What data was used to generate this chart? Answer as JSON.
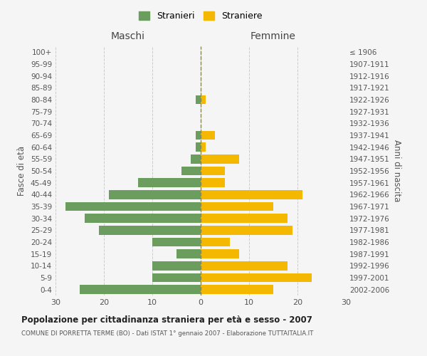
{
  "age_groups": [
    "0-4",
    "5-9",
    "10-14",
    "15-19",
    "20-24",
    "25-29",
    "30-34",
    "35-39",
    "40-44",
    "45-49",
    "50-54",
    "55-59",
    "60-64",
    "65-69",
    "70-74",
    "75-79",
    "80-84",
    "85-89",
    "90-94",
    "95-99",
    "100+"
  ],
  "birth_years": [
    "2002-2006",
    "1997-2001",
    "1992-1996",
    "1987-1991",
    "1982-1986",
    "1977-1981",
    "1972-1976",
    "1967-1971",
    "1962-1966",
    "1957-1961",
    "1952-1956",
    "1947-1951",
    "1942-1946",
    "1937-1941",
    "1932-1936",
    "1927-1931",
    "1922-1926",
    "1917-1921",
    "1912-1916",
    "1907-1911",
    "≤ 1906"
  ],
  "males": [
    25,
    10,
    10,
    5,
    10,
    21,
    24,
    28,
    19,
    13,
    4,
    2,
    1,
    1,
    0,
    0,
    1,
    0,
    0,
    0,
    0
  ],
  "females": [
    15,
    23,
    18,
    8,
    6,
    19,
    18,
    15,
    21,
    5,
    5,
    8,
    1,
    3,
    0,
    0,
    1,
    0,
    0,
    0,
    0
  ],
  "male_color": "#6b9e5e",
  "female_color": "#f5b800",
  "title": "Popolazione per cittadinanza straniera per età e sesso - 2007",
  "subtitle": "COMUNE DI PORRETTA TERME (BO) - Dati ISTAT 1° gennaio 2007 - Elaborazione TUTTAITALIA.IT",
  "xlabel_left": "Maschi",
  "xlabel_right": "Femmine",
  "ylabel_left": "Fasce di età",
  "ylabel_right": "Anni di nascita",
  "legend_male": "Stranieri",
  "legend_female": "Straniere",
  "xlim": 30,
  "background_color": "#f5f5f5",
  "grid_color": "#cccccc"
}
